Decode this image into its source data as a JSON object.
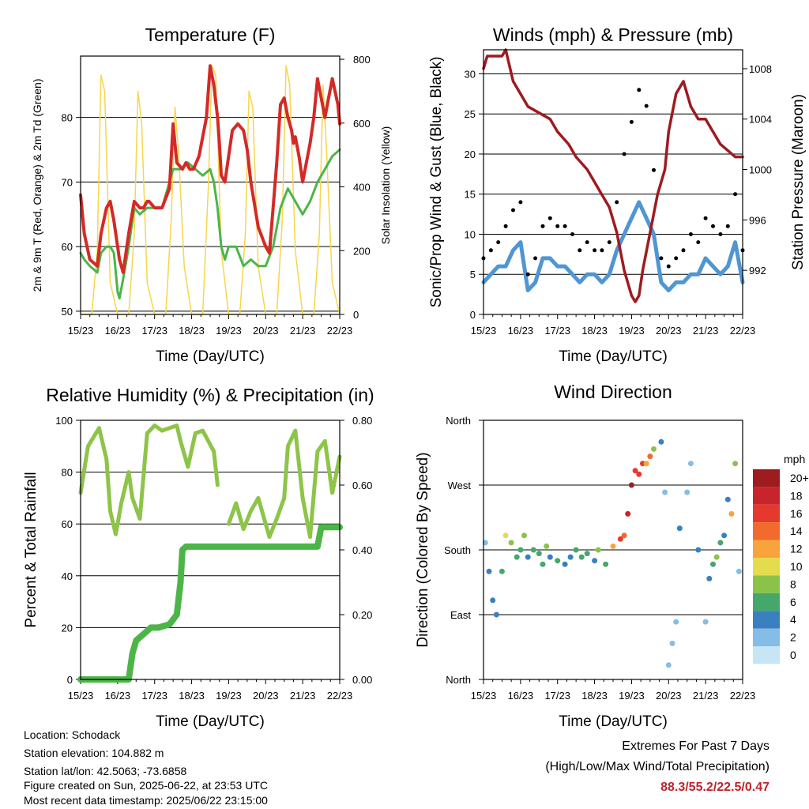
{
  "chart_data": [
    {
      "type": "line",
      "title": "Temperature (F)",
      "xlabel": "Time (Day/UTC)",
      "ylabel": "2m & 9m T (Red, Orange) & 2m Td (Green)",
      "y2label": "Solar Insolation (Yellow)",
      "xticks": [
        "15/23",
        "16/23",
        "17/23",
        "18/23",
        "19/23",
        "20/23",
        "21/23",
        "22/23"
      ],
      "xlim": [
        0,
        7
      ],
      "ylim": [
        49.5,
        89.5
      ],
      "yticks": [
        50,
        60,
        70,
        80
      ],
      "y2lim": [
        0,
        810
      ],
      "y2ticks": [
        0,
        200,
        400,
        600,
        800
      ],
      "grid": "horizontal",
      "colors": {
        "t2m": "#d42a26",
        "t9m": "#f28a2e",
        "td": "#4cb548",
        "solar": "#f6d64a"
      },
      "series": [
        {
          "name": "2m T",
          "x": [
            0,
            0.1,
            0.25,
            0.45,
            0.55,
            0.7,
            0.8,
            0.9,
            1.0,
            1.05,
            1.15,
            1.3,
            1.45,
            1.6,
            1.7,
            1.8,
            1.85,
            2.0,
            2.2,
            2.4,
            2.5,
            2.6,
            2.75,
            2.85,
            2.95,
            3.05,
            3.2,
            3.4,
            3.5,
            3.6,
            3.7,
            3.75,
            3.8,
            3.9,
            4.0,
            4.1,
            4.25,
            4.4,
            4.5,
            4.6,
            4.8,
            5.0,
            5.1,
            5.2,
            5.3,
            5.4,
            5.5,
            5.6,
            5.7,
            5.75,
            5.8,
            5.9,
            6.0,
            6.1,
            6.2,
            6.3,
            6.4,
            6.5,
            6.6,
            6.7,
            6.8,
            6.95,
            7.0
          ],
          "values": [
            68,
            62,
            58,
            57,
            62,
            66,
            67,
            64,
            60,
            58,
            56,
            62,
            67,
            66,
            66,
            67,
            67,
            66,
            66,
            69,
            79,
            73,
            72,
            73,
            72,
            72,
            74,
            80,
            88,
            85,
            80,
            76,
            71,
            70,
            74,
            78,
            79,
            78,
            75,
            70,
            63,
            60,
            59,
            66,
            73,
            82,
            83,
            80,
            78,
            76,
            77,
            74,
            70,
            73,
            76,
            80,
            86,
            83,
            80,
            83,
            86,
            82,
            79
          ]
        },
        {
          "name": "2m Td",
          "x": [
            0,
            0.1,
            0.25,
            0.45,
            0.55,
            0.7,
            0.8,
            0.9,
            1.0,
            1.05,
            1.15,
            1.3,
            1.45,
            1.6,
            1.8,
            2.0,
            2.2,
            2.4,
            2.5,
            2.7,
            2.9,
            3.1,
            3.3,
            3.5,
            3.6,
            3.7,
            3.8,
            3.9,
            4.0,
            4.2,
            4.4,
            4.6,
            4.8,
            5.0,
            5.2,
            5.4,
            5.6,
            5.8,
            6.0,
            6.2,
            6.4,
            6.6,
            6.8,
            7.0
          ],
          "values": [
            59,
            58,
            57,
            56,
            59,
            60,
            60,
            59,
            53,
            52,
            55,
            60,
            66,
            65,
            66,
            66,
            66,
            70,
            72,
            72,
            73,
            72,
            71,
            72,
            70,
            66,
            60,
            58,
            60,
            60,
            57,
            58,
            57,
            57,
            60,
            66,
            69,
            67,
            65,
            67,
            70,
            72,
            74,
            75
          ]
        },
        {
          "name": "Solar",
          "x": [
            0,
            0.3,
            0.45,
            0.55,
            0.65,
            0.8,
            1.0,
            1.3,
            1.45,
            1.55,
            1.65,
            1.8,
            2.0,
            2.3,
            2.45,
            2.55,
            2.65,
            2.8,
            3.0,
            3.3,
            3.45,
            3.55,
            3.65,
            3.8,
            4.0,
            4.3,
            4.45,
            4.55,
            4.65,
            4.8,
            5.0,
            5.3,
            5.45,
            5.55,
            5.65,
            5.8,
            6.0,
            6.3,
            6.45,
            6.55,
            6.65,
            6.8,
            7.0
          ],
          "values": [
            0,
            0,
            200,
            750,
            700,
            100,
            0,
            0,
            250,
            700,
            600,
            100,
            0,
            0,
            300,
            650,
            500,
            150,
            0,
            0,
            400,
            780,
            750,
            200,
            0,
            0,
            250,
            700,
            650,
            150,
            0,
            0,
            300,
            780,
            720,
            200,
            0,
            0,
            250,
            720,
            500,
            100,
            0
          ]
        }
      ]
    },
    {
      "type": "scatter",
      "title": "Winds (mph) & Pressure (mb)",
      "xlabel": "Time (Day/UTC)",
      "ylabel": "Sonic/Prop Wind & Gust (Blue, Black)",
      "y2label": "Station Pressure (Maroon)",
      "xticks": [
        "15/23",
        "16/23",
        "17/23",
        "18/23",
        "19/23",
        "20/23",
        "21/23",
        "22/23"
      ],
      "xlim": [
        0,
        7
      ],
      "ylim": [
        0,
        33
      ],
      "yticks": [
        0,
        5,
        10,
        15,
        20,
        25,
        30
      ],
      "y2lim": [
        988.5,
        1009.5
      ],
      "y2ticks": [
        992,
        996,
        1000,
        1004,
        1008
      ],
      "grid": "horizontal",
      "colors": {
        "wind": "#4f96d3",
        "gust": "#000000",
        "pressure": "#9e1b20"
      },
      "series": [
        {
          "name": "Wind",
          "x": [
            0,
            0.2,
            0.4,
            0.6,
            0.8,
            1.0,
            1.2,
            1.4,
            1.6,
            1.8,
            2.0,
            2.2,
            2.4,
            2.6,
            2.8,
            3.0,
            3.2,
            3.4,
            3.6,
            3.8,
            4.0,
            4.2,
            4.4,
            4.6,
            4.8,
            5.0,
            5.2,
            5.4,
            5.6,
            5.8,
            6.0,
            6.2,
            6.4,
            6.6,
            6.8,
            7.0
          ],
          "values": [
            4,
            5,
            6,
            6,
            8,
            9,
            3,
            4,
            7,
            7,
            6,
            6,
            5,
            4,
            5,
            5,
            4,
            5,
            8,
            10,
            12,
            14,
            12,
            10,
            4,
            3,
            4,
            4,
            5,
            5,
            7,
            6,
            5,
            6,
            9,
            4
          ]
        },
        {
          "name": "Gust",
          "x": [
            0,
            0.2,
            0.4,
            0.6,
            0.8,
            1.0,
            1.2,
            1.4,
            1.6,
            1.8,
            2.0,
            2.2,
            2.4,
            2.6,
            2.8,
            3.0,
            3.2,
            3.4,
            3.6,
            3.8,
            4.0,
            4.2,
            4.4,
            4.6,
            4.8,
            5.0,
            5.2,
            5.4,
            5.6,
            5.8,
            6.0,
            6.2,
            6.4,
            6.6,
            6.8,
            7.0
          ],
          "values": [
            7,
            8,
            9,
            11,
            13,
            14,
            5,
            7,
            11,
            12,
            11,
            11,
            10,
            8,
            9,
            8,
            8,
            9,
            14,
            20,
            24,
            28,
            26,
            18,
            7,
            6,
            7,
            8,
            10,
            9,
            12,
            11,
            10,
            11,
            15,
            8
          ]
        },
        {
          "name": "Pressure",
          "x": [
            0,
            0.1,
            0.3,
            0.5,
            0.6,
            0.8,
            1.0,
            1.2,
            1.5,
            1.8,
            2.0,
            2.3,
            2.5,
            2.8,
            3.0,
            3.2,
            3.4,
            3.6,
            3.8,
            4.0,
            4.1,
            4.2,
            4.3,
            4.5,
            4.7,
            4.9,
            5.0,
            5.2,
            5.4,
            5.6,
            5.8,
            6.0,
            6.2,
            6.4,
            6.6,
            6.8,
            7.0
          ],
          "values": [
            1008,
            1009,
            1009,
            1009,
            1009.5,
            1007,
            1006,
            1005,
            1004.5,
            1004,
            1003,
            1002,
            1001,
            1000,
            999,
            998,
            997,
            995,
            992,
            990,
            989.5,
            990,
            992,
            995,
            998,
            1000,
            1003,
            1006,
            1007,
            1005,
            1004,
            1004,
            1003,
            1002,
            1001.5,
            1001,
            1001
          ]
        }
      ]
    },
    {
      "type": "line",
      "title": "Relative Humidity (%) & Precipitation (in)",
      "xlabel": "Time (Day/UTC)",
      "ylabel": "Percent & Total Rainfall",
      "xticks": [
        "15/23",
        "16/23",
        "17/23",
        "18/23",
        "19/23",
        "20/23",
        "21/23",
        "22/23"
      ],
      "xlim": [
        0,
        7
      ],
      "ylim": [
        0,
        100
      ],
      "yticks": [
        0,
        20,
        40,
        60,
        80,
        100
      ],
      "y2lim": [
        0,
        0.8
      ],
      "y2ticks": [
        "0.00",
        "0.20",
        "0.40",
        "0.60",
        "0.80"
      ],
      "grid": "horizontal",
      "colors": {
        "rh": "#8dc449",
        "precip": "#4cb548"
      },
      "series": [
        {
          "name": "RH",
          "x": [
            0,
            0.2,
            0.5,
            0.7,
            0.8,
            0.95,
            1.1,
            1.3,
            1.4,
            1.6,
            1.8,
            2.0,
            2.2,
            2.4,
            2.6,
            2.7,
            2.9,
            3.1,
            3.3,
            3.6,
            3.7,
            3.9,
            4.0,
            4.2,
            4.4,
            4.6,
            4.8,
            5.0,
            5.1,
            5.3,
            5.5,
            5.6,
            5.8,
            6.0,
            6.2,
            6.4,
            6.6,
            6.8,
            7.0
          ],
          "values": [
            72,
            90,
            97,
            85,
            65,
            56,
            68,
            80,
            70,
            62,
            95,
            98,
            96,
            97,
            98,
            92,
            82,
            95,
            96,
            88,
            75,
            null,
            60,
            68,
            58,
            65,
            70,
            60,
            55,
            62,
            70,
            90,
            96,
            70,
            55,
            88,
            92,
            72,
            86
          ]
        },
        {
          "name": "Precip",
          "x": [
            0,
            0.5,
            1.0,
            1.3,
            1.4,
            1.5,
            1.7,
            1.9,
            2.1,
            2.4,
            2.6,
            2.7,
            2.75,
            2.85,
            3.0,
            3.5,
            4.0,
            5.0,
            6.0,
            6.4,
            6.5,
            6.6,
            7.0
          ],
          "values": [
            0,
            0,
            0,
            0,
            0.08,
            0.12,
            0.14,
            0.16,
            0.16,
            0.17,
            0.2,
            0.3,
            0.4,
            0.41,
            0.41,
            0.41,
            0.41,
            0.41,
            0.41,
            0.41,
            0.47,
            0.47,
            0.47
          ]
        }
      ]
    },
    {
      "type": "scatter",
      "title": "Wind Direction",
      "xlabel": "Time (Day/UTC)",
      "ylabel": "Direction (Colored By Speed)",
      "xticks": [
        "15/23",
        "16/23",
        "17/23",
        "18/23",
        "19/23",
        "20/23",
        "21/23",
        "22/23"
      ],
      "xlim": [
        0,
        7
      ],
      "yticks": [
        "North",
        "East",
        "South",
        "West",
        "North"
      ],
      "ylim": [
        0,
        360
      ],
      "grid": "horizontal",
      "legend": {
        "title": "mph",
        "labels": [
          "20+",
          "18",
          "16",
          "14",
          "12",
          "10",
          "8",
          "6",
          "4",
          "2",
          "0"
        ],
        "colors": [
          "#9e1b20",
          "#c8242b",
          "#e5392e",
          "#f26a2c",
          "#f9a33c",
          "#e4dc4d",
          "#8bc34a",
          "#44a86b",
          "#3a80c1",
          "#86bde6",
          "#c6e6f6"
        ]
      },
      "series": [
        {
          "name": "Direction",
          "x": [
            0.05,
            0.15,
            0.25,
            0.35,
            0.5,
            0.6,
            0.75,
            0.9,
            1.0,
            1.1,
            1.2,
            1.35,
            1.5,
            1.6,
            1.7,
            1.8,
            2.0,
            2.2,
            2.35,
            2.5,
            2.65,
            2.8,
            3.0,
            3.1,
            3.3,
            3.5,
            3.7,
            3.8,
            3.9,
            4.0,
            4.1,
            4.2,
            4.3,
            4.4,
            4.5,
            4.6,
            4.8,
            4.9,
            5.0,
            5.1,
            5.2,
            5.3,
            5.5,
            5.6,
            5.8,
            6.0,
            6.1,
            6.2,
            6.3,
            6.4,
            6.5,
            6.6,
            6.7,
            6.8,
            6.9
          ],
          "values": [
            190,
            150,
            110,
            90,
            150,
            200,
            190,
            170,
            180,
            200,
            170,
            180,
            175,
            160,
            185,
            170,
            165,
            160,
            170,
            180,
            170,
            175,
            165,
            180,
            160,
            185,
            195,
            200,
            230,
            270,
            290,
            285,
            300,
            300,
            310,
            320,
            330,
            260,
            20,
            50,
            80,
            210,
            260,
            300,
            180,
            80,
            140,
            160,
            170,
            190,
            200,
            250,
            230,
            300,
            150
          ],
          "speeds": [
            3,
            4,
            5,
            4,
            6,
            10,
            8,
            7,
            6,
            8,
            5,
            6,
            7,
            6,
            8,
            5,
            6,
            5,
            4,
            6,
            7,
            6,
            5,
            8,
            6,
            12,
            16,
            14,
            18,
            20,
            17,
            16,
            16,
            12,
            14,
            8,
            4,
            3,
            2,
            3,
            2,
            4,
            3,
            2,
            4,
            3,
            4,
            6,
            8,
            7,
            5,
            4,
            12,
            8,
            3
          ]
        }
      ]
    }
  ],
  "info": {
    "location": "Location: Schodack",
    "elevation": "Station elevation: 104.882 m",
    "latlon": "Station lat/lon: 42.5063; -73.6858",
    "created": "Figure created on Sun, 2025-06-22, at 23:53 UTC",
    "latest": "Most recent data timestamp: 2025/06/22 23:15:00"
  },
  "extremes": {
    "title": "Extremes For Past 7 Days",
    "subtitle": "(High/Low/Max Wind/Total Precipitation)",
    "values": "88.3/55.2/22.5/0.47"
  }
}
